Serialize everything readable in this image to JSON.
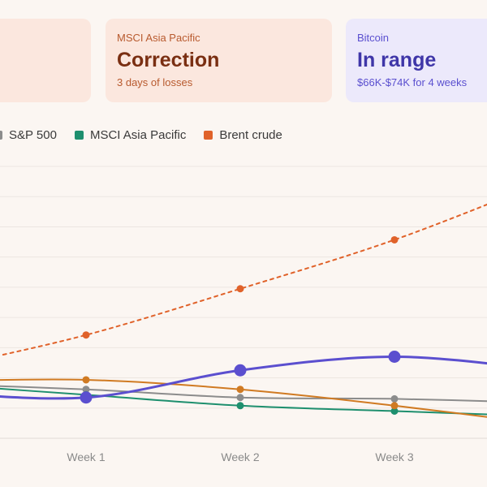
{
  "cards": [
    {
      "label": "",
      "status": "",
      "sub": ""
    },
    {
      "label": "MSCI Asia Pacific",
      "status": "Correction",
      "sub": "3 days of losses"
    },
    {
      "label": "Bitcoin",
      "status": "In range",
      "sub": "$66K-$74K for 4 weeks"
    }
  ],
  "legend": [
    {
      "name": "S&P 500",
      "color": "#8c8c8c"
    },
    {
      "name": "MSCI Asia Pacific",
      "color": "#1e8f6e"
    },
    {
      "name": "Brent crude",
      "color": "#e0622a"
    }
  ],
  "colors": {
    "bitcoin": "#5b4fcf",
    "grid": "#ece6e1"
  },
  "chart_data": {
    "type": "line",
    "categories": [
      "",
      "Week 1",
      "Week 2",
      "Week 3",
      ""
    ],
    "x": [
      0,
      1,
      2,
      3,
      4
    ],
    "ylim": [
      0,
      10
    ],
    "grid": true,
    "legend_placement": "top-left",
    "series": [
      {
        "name": "S&P 500",
        "key": "sp500",
        "color": "#8c8c8c",
        "dashed": false,
        "markers": true,
        "values": [
          2.0,
          1.8,
          1.5,
          1.45,
          1.3
        ]
      },
      {
        "name": "MSCI Asia Pacific",
        "key": "msci",
        "color": "#1e8f6e",
        "dashed": false,
        "markers": true,
        "values": [
          2.0,
          1.6,
          1.2,
          1.0,
          0.8
        ]
      },
      {
        "name": "Brent crude",
        "key": "brent",
        "color": "#e0622a",
        "dashed": true,
        "markers": true,
        "values": [
          2.5,
          3.8,
          5.5,
          7.3,
          9.5
        ]
      },
      {
        "name": "",
        "key": "bitcoin",
        "color": "#d07a22",
        "dashed": false,
        "markers": true,
        "values": [
          2.1,
          2.15,
          1.8,
          1.2,
          0.5
        ]
      },
      {
        "name": "",
        "key": "bitcoin-line",
        "color": "#5b4fcf",
        "dashed": false,
        "markers": true,
        "large_markers": true,
        "values": [
          1.7,
          1.5,
          2.5,
          3.0,
          2.5
        ]
      }
    ]
  }
}
